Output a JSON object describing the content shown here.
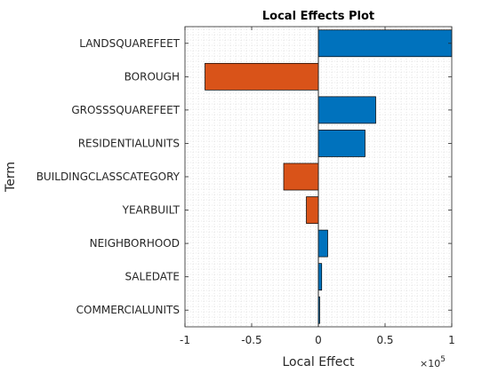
{
  "chart_data": {
    "type": "bar",
    "orientation": "horizontal",
    "title": "Local Effects Plot",
    "xlabel": "Local Effect",
    "ylabel": "Term",
    "x_exponent_base": "×10",
    "x_exponent_power": "5",
    "xlim": [
      -1,
      1
    ],
    "xticks": [
      -1,
      -0.5,
      0,
      0.5,
      1
    ],
    "xtick_labels": [
      "-1",
      "-0.5",
      "0",
      "0.5",
      "1"
    ],
    "grid": "dotted",
    "categories": [
      "LANDSQUAREFEET",
      "BOROUGH",
      "GROSSSQUAREFEET",
      "RESIDENTIALUNITS",
      "BUILDINGCLASSCATEGORY",
      "YEARBUILT",
      "NEIGHBORHOOD",
      "SALEDATE",
      "COMMERCIALUNITS"
    ],
    "values": [
      1.0,
      -0.85,
      0.43,
      0.35,
      -0.26,
      -0.09,
      0.07,
      0.025,
      0.01
    ],
    "colors": {
      "positive": "#0072BD",
      "negative": "#D95319",
      "edge": "#000000"
    }
  }
}
